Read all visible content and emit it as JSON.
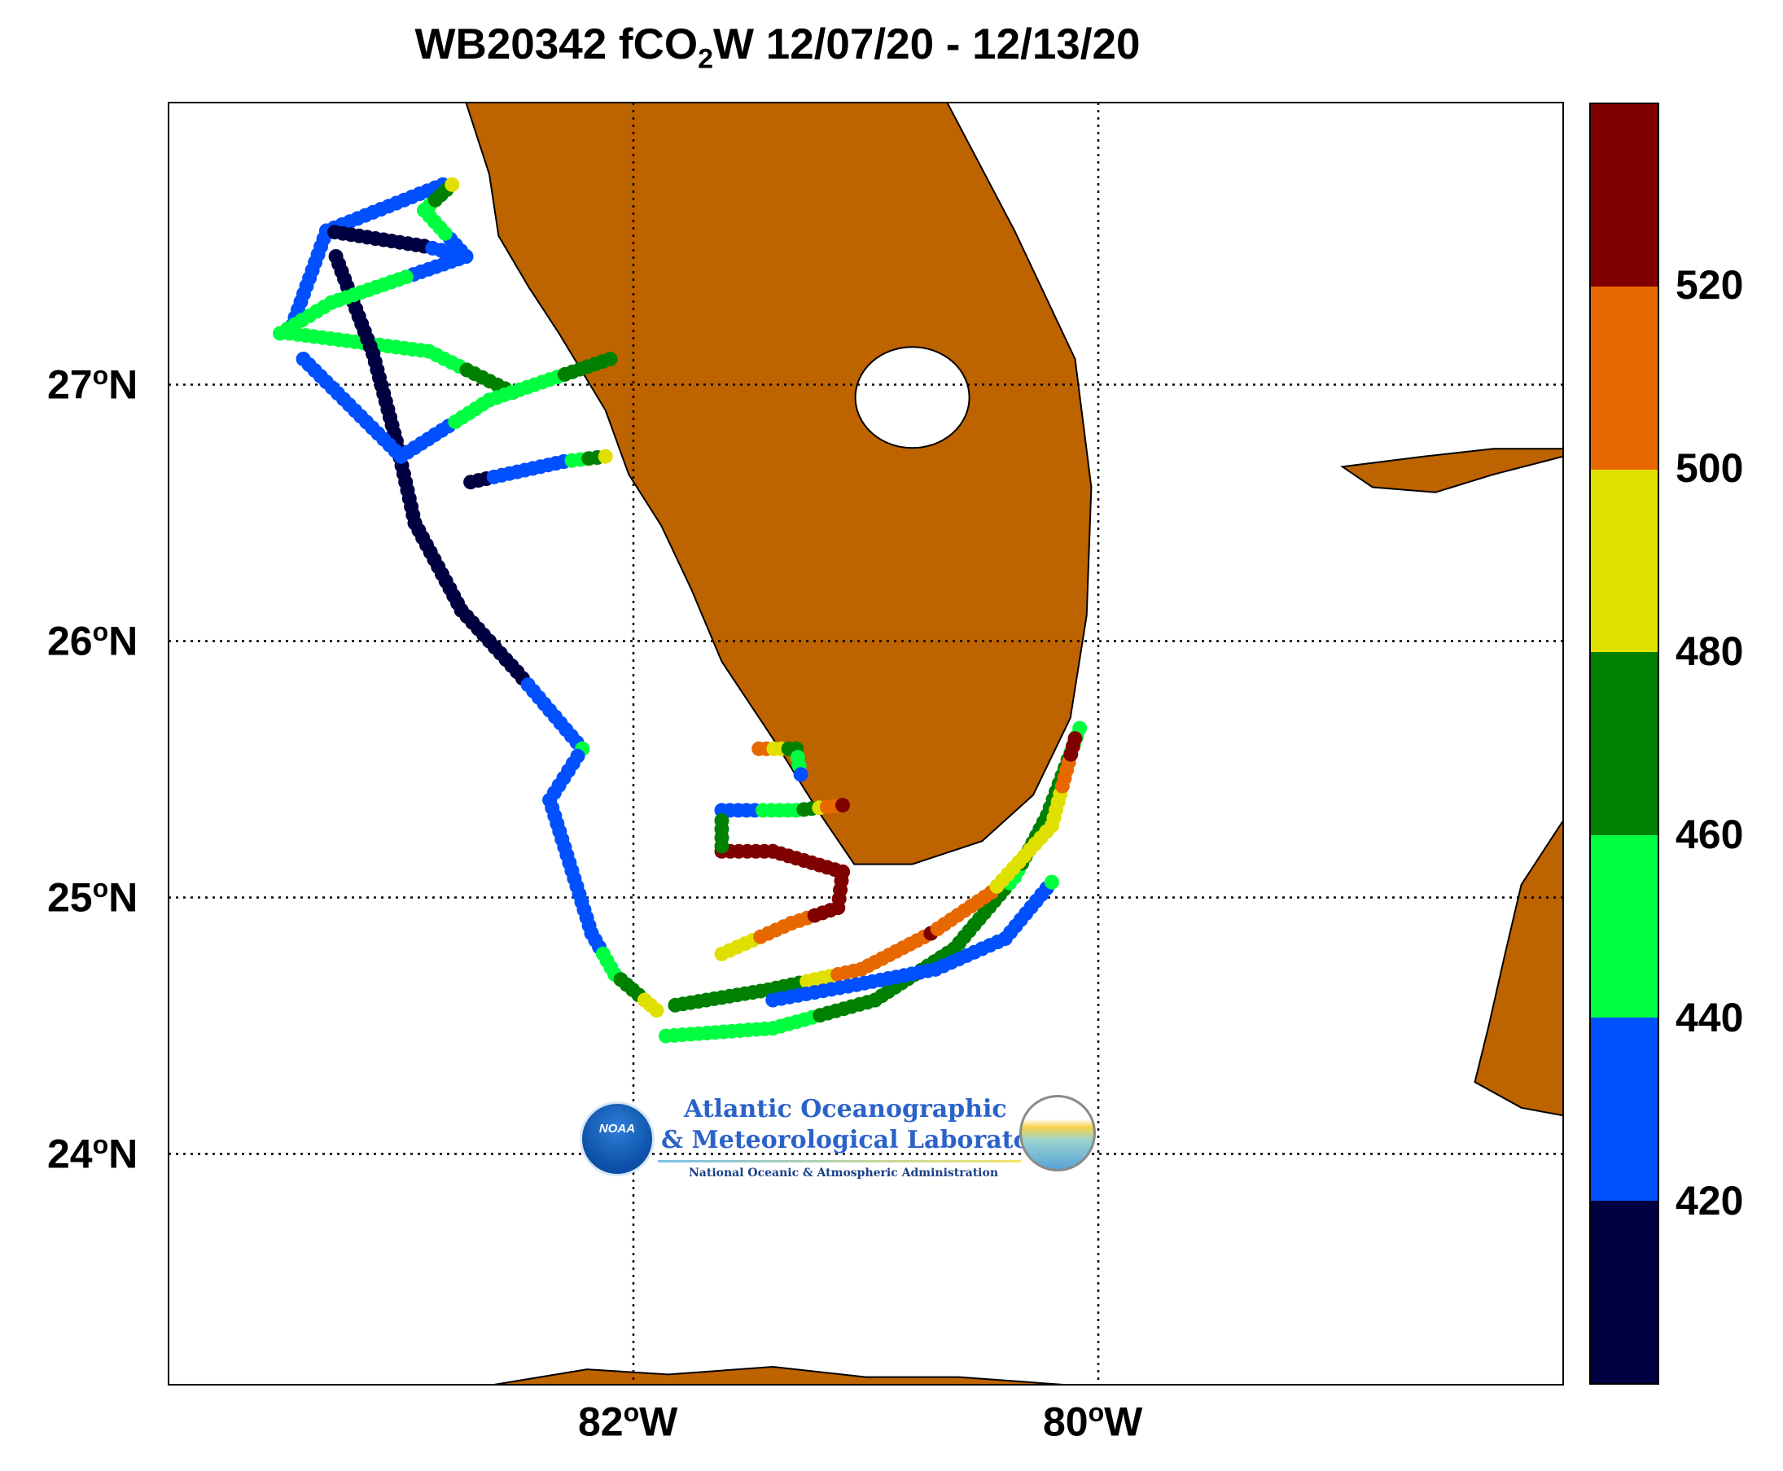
{
  "title": {
    "prefix": "WB20342 fCO",
    "sub": "2",
    "suffix": "W 12/07/20 - 12/13/20"
  },
  "map": {
    "lon_range": [
      -84.0,
      -78.0
    ],
    "lat_range": [
      23.1,
      28.1
    ],
    "grid": "dotted",
    "land_color": "#bd6300",
    "lat_ticks": [
      {
        "value": 27,
        "deg": "27",
        "hemi": "N"
      },
      {
        "value": 26,
        "deg": "26",
        "hemi": "N"
      },
      {
        "value": 25,
        "deg": "25",
        "hemi": "N"
      },
      {
        "value": 24,
        "deg": "24",
        "hemi": "N"
      }
    ],
    "lon_ticks": [
      {
        "value": -82,
        "deg": "82",
        "hemi": "W"
      },
      {
        "value": -80,
        "deg": "80",
        "hemi": "W"
      }
    ],
    "track_legs": [
      {
        "points": [
          [
            -82.82,
            27.78
          ],
          [
            -83.32,
            27.6
          ],
          [
            -83.48,
            27.2
          ],
          [
            -82.88,
            27.13
          ],
          [
            -82.52,
            26.97
          ],
          [
            -82.52,
            26.97
          ]
        ],
        "values": [
          430,
          424,
          440,
          452,
          470,
          470
        ]
      },
      {
        "points": [
          [
            -83.32,
            27.6
          ],
          [
            -82.9,
            27.54
          ],
          [
            -82.72,
            27.5
          ],
          [
            -82.9,
            27.68
          ],
          [
            -82.78,
            27.78
          ]
        ],
        "values": [
          420,
          418,
          430,
          450,
          485
        ]
      },
      {
        "points": [
          [
            -83.28,
            27.5
          ],
          [
            -83.12,
            27.12
          ],
          [
            -83.02,
            26.78
          ],
          [
            -82.94,
            26.46
          ],
          [
            -82.74,
            26.12
          ],
          [
            -82.5,
            25.88
          ],
          [
            -82.22,
            25.58
          ]
        ],
        "values": [
          414,
          414,
          414,
          414,
          414,
          418,
          430
        ]
      },
      {
        "points": [
          [
            -82.22,
            25.58
          ],
          [
            -82.36,
            25.38
          ],
          [
            -82.18,
            24.86
          ],
          [
            -82.08,
            24.7
          ],
          [
            -81.9,
            24.56
          ]
        ],
        "values": [
          440,
          425,
          432,
          455,
          490
        ]
      },
      {
        "points": [
          [
            -82.72,
            27.5
          ],
          [
            -83.3,
            27.32
          ],
          [
            -83.52,
            27.2
          ]
        ],
        "values": [
          436,
          445,
          458
        ]
      },
      {
        "points": [
          [
            -83.42,
            27.1
          ],
          [
            -83.0,
            26.72
          ],
          [
            -82.62,
            26.94
          ],
          [
            -82.1,
            27.1
          ]
        ],
        "values": [
          426,
          432,
          446,
          470
        ]
      },
      {
        "points": [
          [
            -82.7,
            26.62
          ],
          [
            -82.3,
            26.7
          ],
          [
            -82.12,
            26.72
          ]
        ],
        "values": [
          418,
          428,
          490
        ]
      },
      {
        "points": [
          [
            -81.86,
            24.46
          ],
          [
            -81.4,
            24.49
          ],
          [
            -80.96,
            24.6
          ],
          [
            -80.62,
            24.8
          ],
          [
            -80.36,
            25.08
          ],
          [
            -80.22,
            25.32
          ],
          [
            -80.08,
            25.66
          ]
        ],
        "values": [
          448,
          452,
          470,
          478,
          458,
          470,
          455
        ]
      },
      {
        "points": [
          [
            -81.82,
            24.58
          ],
          [
            -81.42,
            24.64
          ],
          [
            -81.02,
            24.72
          ],
          [
            -80.72,
            24.86
          ],
          [
            -80.46,
            25.02
          ],
          [
            -80.2,
            25.28
          ],
          [
            -80.1,
            25.62
          ]
        ],
        "values": [
          470,
          462,
          515,
          520,
          500,
          480,
          530
        ]
      },
      {
        "points": [
          [
            -81.62,
            24.78
          ],
          [
            -81.32,
            24.9
          ],
          [
            -81.12,
            24.96
          ],
          [
            -81.1,
            25.1
          ],
          [
            -81.4,
            25.18
          ],
          [
            -81.62,
            25.18
          ]
        ],
        "values": [
          490,
          510,
          530,
          530,
          532,
          530
        ]
      },
      {
        "points": [
          [
            -81.62,
            25.34
          ],
          [
            -81.3,
            25.34
          ],
          [
            -81.1,
            25.36
          ]
        ],
        "values": [
          430,
          450,
          530
        ]
      },
      {
        "points": [
          [
            -81.46,
            25.58
          ],
          [
            -81.3,
            25.58
          ],
          [
            -81.28,
            25.48
          ]
        ],
        "values": [
          510,
          470,
          430
        ]
      },
      {
        "points": [
          [
            -81.62,
            25.3
          ],
          [
            -81.62,
            25.2
          ]
        ],
        "values": [
          468,
          462
        ]
      },
      {
        "points": [
          [
            -81.4,
            24.6
          ],
          [
            -81.04,
            24.66
          ],
          [
            -80.7,
            24.72
          ],
          [
            -80.4,
            24.84
          ],
          [
            -80.2,
            25.06
          ]
        ],
        "values": [
          432,
          430,
          428,
          434,
          440
        ]
      }
    ],
    "logo": {
      "noaa": "NOAA",
      "line1": "Atlantic Oceanographic",
      "line2": "& Meteorological Laboratory",
      "line3": "National Oceanic & Atmospheric Administration"
    }
  },
  "colorbar": {
    "colors": [
      "#000040",
      "#0050ff",
      "#00ff40",
      "#008000",
      "#e0e000",
      "#e86800",
      "#800000"
    ],
    "range": [
      400,
      540
    ],
    "ticks": [
      {
        "value": 520,
        "label": "520"
      },
      {
        "value": 500,
        "label": "500"
      },
      {
        "value": 480,
        "label": "480"
      },
      {
        "value": 460,
        "label": "460"
      },
      {
        "value": 440,
        "label": "440"
      },
      {
        "value": 420,
        "label": "420"
      }
    ]
  }
}
